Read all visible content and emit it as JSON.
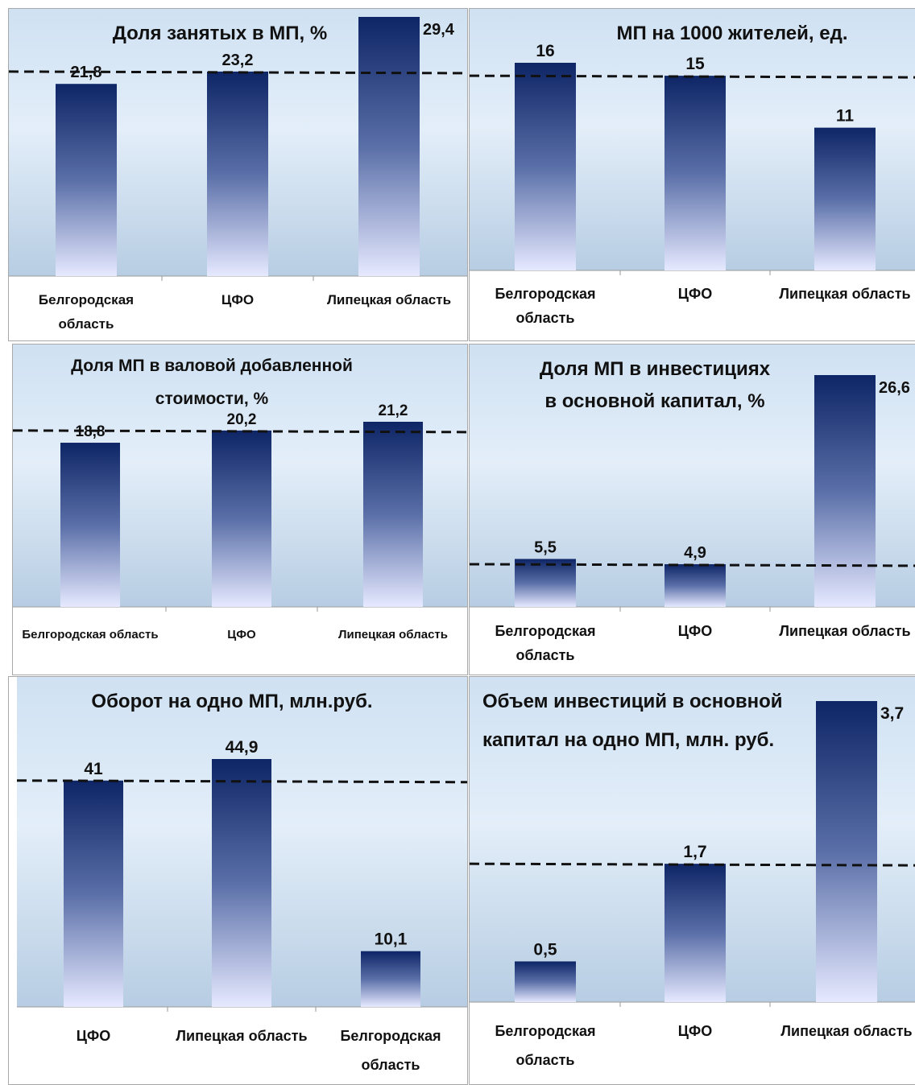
{
  "chart_data": [
    {
      "type": "bar",
      "title_lines": [
        "Доля занятых в МП, %"
      ],
      "categories": [
        [
          "Белгородская",
          "область"
        ],
        [
          "ЦФО"
        ],
        [
          "Липецкая область"
        ]
      ],
      "values": [
        21.8,
        23.2,
        29.4
      ],
      "value_labels": [
        "21,8",
        "23,2",
        "29,4"
      ],
      "reference_line": 23.2,
      "ylim": [
        0,
        29.4
      ]
    },
    {
      "type": "bar",
      "title_lines": [
        "МП на 1000 жителей, ед."
      ],
      "categories": [
        [
          "Белгородская",
          "область"
        ],
        [
          "ЦФО"
        ],
        [
          "Липецкая область"
        ]
      ],
      "values": [
        16,
        15,
        11
      ],
      "value_labels": [
        "16",
        "15",
        "11"
      ],
      "reference_line": 15,
      "ylim": [
        0,
        16
      ]
    },
    {
      "type": "bar",
      "title_lines": [
        "Доля МП в валовой добавленной",
        "стоимости, %"
      ],
      "categories": [
        [
          "Белгородская область"
        ],
        [
          "ЦФО"
        ],
        [
          "Липецкая область"
        ]
      ],
      "values": [
        18.8,
        20.2,
        21.2
      ],
      "value_labels": [
        "18,8",
        "20,2",
        "21,2"
      ],
      "reference_line": 20.2,
      "ylim": [
        0,
        21.2
      ]
    },
    {
      "type": "bar",
      "title_lines": [
        "Доля МП в инвестициях",
        "в основной капитал, %"
      ],
      "categories": [
        [
          "Белгородская",
          "область"
        ],
        [
          "ЦФО"
        ],
        [
          "Липецкая область"
        ]
      ],
      "values": [
        5.5,
        4.9,
        26.6
      ],
      "value_labels": [
        "5,5",
        "4,9",
        "26,6"
      ],
      "reference_line": 4.9,
      "ylim": [
        0,
        26.6
      ]
    },
    {
      "type": "bar",
      "title_lines": [
        "Оборот на одно МП, млн.руб."
      ],
      "categories": [
        [
          "ЦФО"
        ],
        [
          "Липецкая область"
        ],
        [
          "Белгородская",
          "область"
        ]
      ],
      "values": [
        41,
        44.9,
        10.1
      ],
      "value_labels": [
        "41",
        "44,9",
        "10,1"
      ],
      "reference_line": 41,
      "ylim": [
        0,
        44.9
      ]
    },
    {
      "type": "bar",
      "title_lines": [
        "Объем инвестиций в основной",
        "капитал на одно МП, млн. руб."
      ],
      "categories": [
        [
          "Белгородская",
          "область"
        ],
        [
          "ЦФО"
        ],
        [
          "Липецкая область"
        ]
      ],
      "values": [
        0.5,
        1.7,
        3.7
      ],
      "value_labels": [
        "0,5",
        "1,7",
        "3,7"
      ],
      "reference_line": 1.7,
      "ylim": [
        0,
        3.7
      ]
    }
  ]
}
